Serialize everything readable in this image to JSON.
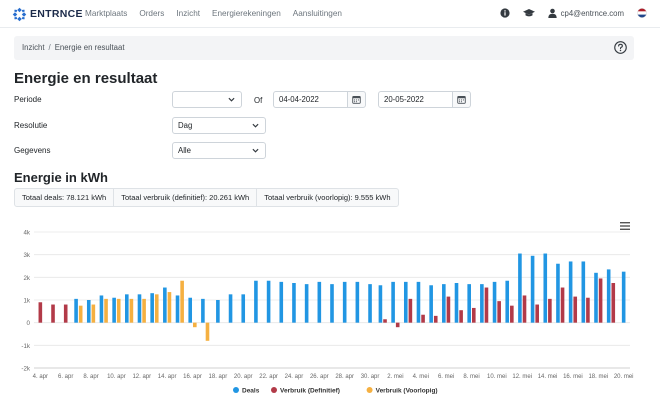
{
  "nav": {
    "brand": "ENTRNCE",
    "links": [
      "Marktplaats",
      "Orders",
      "Inzicht",
      "Energierekeningen",
      "Aansluitingen"
    ],
    "user_email": "cp4@entrnce.com",
    "icons": [
      "info-icon",
      "graduation-cap-icon",
      "user-icon",
      "dutch-flag-icon"
    ]
  },
  "breadcrumb": {
    "root": "Inzicht",
    "separator": "/",
    "current": "Energie en resultaat"
  },
  "page": {
    "title": "Energie en resultaat"
  },
  "form": {
    "period_label": "Periode",
    "period_value": "",
    "of_label": "Of",
    "date_from": "04-04-2022",
    "date_to": "20-05-2022",
    "resolution_label": "Resolutie",
    "resolution_value": "Dag",
    "data_label": "Gegevens",
    "data_value": "Alle"
  },
  "energy": {
    "title": "Energie in kWh",
    "totals": [
      "Totaal deals: 78.121 kWh",
      "Totaal verbruik (definitief): 20.261 kWh",
      "Totaal verbruik (voorlopig): 9.555 kWh"
    ]
  },
  "colors": {
    "deals": "#2196e3",
    "definitief": "#b23a48",
    "voorlopig": "#f5b041",
    "grid": "#e6e6e6",
    "axis_text": "#666666"
  },
  "chart_data": {
    "type": "bar",
    "categories": [
      "4. apr",
      "5. apr",
      "6. apr",
      "7. apr",
      "8. apr",
      "9. apr",
      "10. apr",
      "11. apr",
      "12. apr",
      "13. apr",
      "14. apr",
      "15. apr",
      "16. apr",
      "17. apr",
      "18. apr",
      "19. apr",
      "20. apr",
      "21. apr",
      "22. apr",
      "23. apr",
      "24. apr",
      "25. apr",
      "26. apr",
      "27. apr",
      "28. apr",
      "29. apr",
      "30. apr",
      "1. mei",
      "2. mei",
      "3. mei",
      "4. mei",
      "5. mei",
      "6. mei",
      "7. mei",
      "8. mei",
      "9. mei",
      "10. mei",
      "11. mei",
      "12. mei",
      "13. mei",
      "14. mei",
      "15. mei",
      "16. mei",
      "17. mei",
      "18. mei",
      "19. mei",
      "20. mei"
    ],
    "tick_labels": [
      "4. apr",
      "6. apr",
      "8. apr",
      "10. apr",
      "12. apr",
      "14. apr",
      "16. apr",
      "18. apr",
      "20. apr",
      "22. apr",
      "24. apr",
      "26. apr",
      "28. apr",
      "30. apr",
      "2. mei",
      "4. mei",
      "6. mei",
      "8. mei",
      "10. mei",
      "12. mei",
      "14. mei",
      "16. mei",
      "18. mei",
      "20. mei"
    ],
    "series": [
      {
        "name": "Deals",
        "values": [
          0,
          0,
          0,
          1050,
          1000,
          1200,
          1100,
          1250,
          1250,
          1300,
          1550,
          1200,
          1100,
          1050,
          1000,
          1250,
          1250,
          1850,
          1850,
          1800,
          1750,
          1700,
          1800,
          1700,
          1800,
          1800,
          1700,
          1650,
          1800,
          1800,
          1800,
          1650,
          1700,
          1750,
          1700,
          1700,
          1800,
          1850,
          3050,
          2950,
          3050,
          2600,
          2700,
          2700,
          2200,
          2350,
          2250
        ]
      },
      {
        "name": "Verbruik (Definitief)",
        "values": [
          900,
          800,
          800,
          0,
          0,
          0,
          0,
          0,
          0,
          0,
          0,
          0,
          0,
          0,
          0,
          0,
          0,
          0,
          0,
          0,
          0,
          0,
          0,
          0,
          0,
          0,
          0,
          150,
          -200,
          1050,
          350,
          300,
          1150,
          550,
          650,
          1550,
          950,
          750,
          1200,
          800,
          1050,
          1550,
          1150,
          1100,
          1950,
          1750,
          0
        ]
      },
      {
        "name": "Verbruik (Voorlopig)",
        "values": [
          0,
          0,
          0,
          750,
          800,
          1050,
          1050,
          1050,
          1050,
          1250,
          1350,
          1850,
          -200,
          -800,
          0,
          0,
          0,
          0,
          0,
          0,
          0,
          0,
          0,
          0,
          0,
          0,
          0,
          0,
          0,
          0,
          0,
          0,
          0,
          0,
          0,
          0,
          0,
          0,
          0,
          0,
          0,
          0,
          0,
          0,
          0,
          0,
          0
        ]
      }
    ],
    "y_ticks": [
      "-2k",
      "-1k",
      "0",
      "1k",
      "2k",
      "3k",
      "4k"
    ],
    "ylim": [
      -2000,
      4000
    ],
    "legend_position": "bottom-center",
    "grid": true
  }
}
